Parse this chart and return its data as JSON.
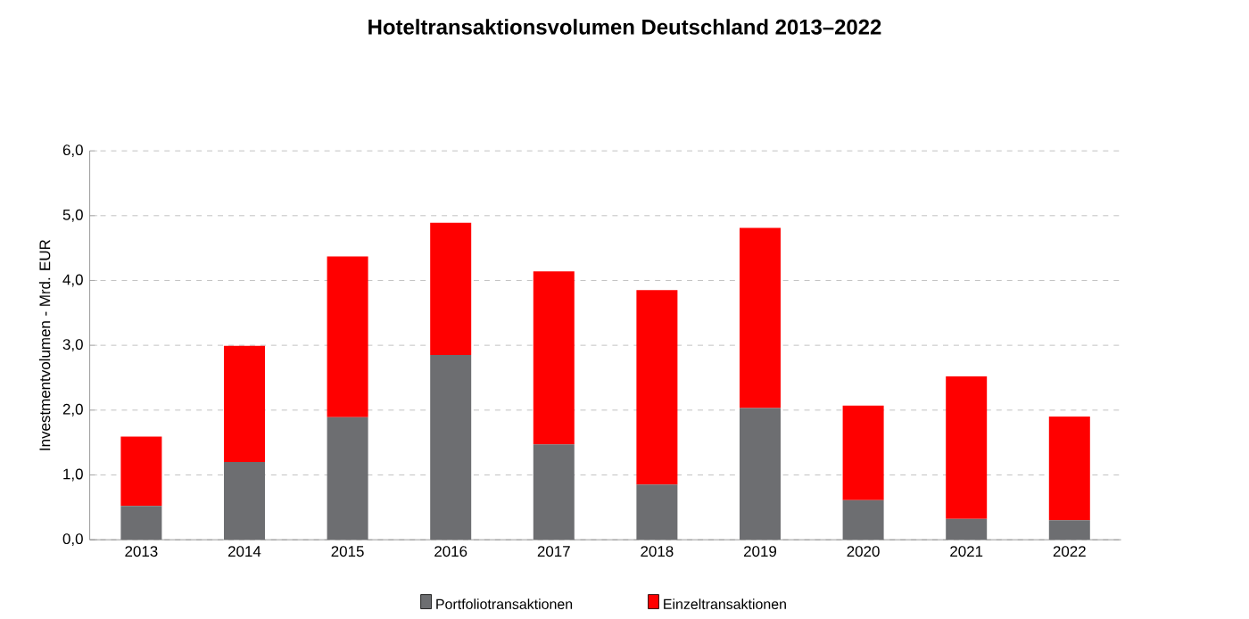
{
  "chart_data": {
    "type": "bar",
    "stacked": true,
    "title": "Hoteltransaktionsvolumen Deutschland 2013–2022",
    "ylabel": "Investmentvolumen - Mrd. EUR",
    "categories": [
      "2013",
      "2014",
      "2015",
      "2016",
      "2017",
      "2018",
      "2019",
      "2020",
      "2021",
      "2022"
    ],
    "series": [
      {
        "name": "Portfoliotransaktionen",
        "color": "#6d6e71",
        "values": [
          0.52,
          1.2,
          1.89,
          2.85,
          1.47,
          0.85,
          2.03,
          0.61,
          0.32,
          0.3
        ]
      },
      {
        "name": "Einzeltransaktionen",
        "color": "#ff0000",
        "values": [
          1.07,
          1.79,
          2.48,
          2.04,
          2.67,
          3.0,
          2.78,
          1.46,
          2.2,
          1.6
        ]
      }
    ],
    "ylim": [
      0,
      6
    ],
    "yticks": [
      {
        "value": 0,
        "label": "0,0"
      },
      {
        "value": 1,
        "label": "1,0"
      },
      {
        "value": 2,
        "label": "2,0"
      },
      {
        "value": 3,
        "label": "3,0"
      },
      {
        "value": 4,
        "label": "4,0"
      },
      {
        "value": 5,
        "label": "5,0"
      },
      {
        "value": 6,
        "label": "6,0"
      }
    ],
    "grid": "y",
    "legend": "bottom"
  }
}
